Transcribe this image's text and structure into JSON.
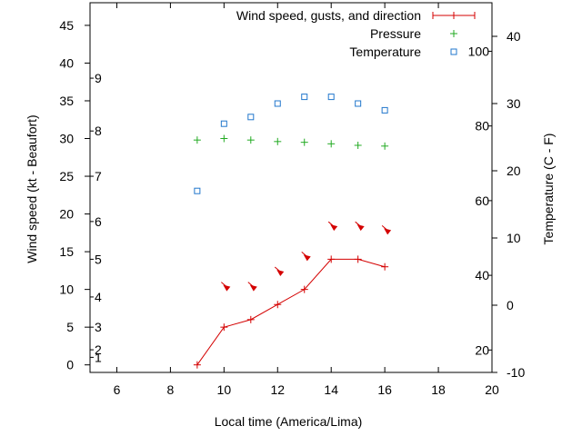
{
  "chart_data": {
    "type": "line",
    "xlabel": "Local time (America/Lima)",
    "ylabel": "Wind speed (kt - Beaufort)",
    "y2label": "Temperature (C - F)",
    "xlim": [
      5,
      20
    ],
    "ylim": [
      -1,
      48
    ],
    "y2lim": [
      -10,
      45
    ],
    "xticks": [
      "6",
      "8",
      "10",
      "12",
      "14",
      "16",
      "18",
      "20"
    ],
    "yticks": [
      "0",
      "5",
      "10",
      "15",
      "20",
      "25",
      "30",
      "35",
      "40",
      "45"
    ],
    "y2ticks": [
      "-10",
      "0",
      "10",
      "20",
      "30",
      "40"
    ],
    "beaufort_labels": [
      "1",
      "2",
      "3",
      "4",
      "5",
      "6",
      "7",
      "8",
      "9"
    ],
    "fahrenheit_labels": [
      "20",
      "40",
      "60",
      "80",
      "100"
    ],
    "colors": {
      "wind": "#d40000",
      "pressure": "#22aa22",
      "temperature": "#2277cc"
    },
    "legend_position": "top-right",
    "series": [
      {
        "name": "Wind speed, gusts, and direction",
        "style": "line-with-plus-markers",
        "x": [
          9,
          10,
          11,
          12,
          13,
          14,
          15,
          16
        ],
        "values": [
          0,
          5,
          6,
          8,
          10,
          14,
          14,
          13
        ]
      },
      {
        "name": "Pressure",
        "style": "plus-markers",
        "x": [
          9,
          10,
          11,
          12,
          13,
          14,
          15,
          16
        ],
        "values": [
          29.8,
          30.0,
          29.8,
          29.6,
          29.5,
          29.3,
          29.1,
          29.0
        ]
      },
      {
        "name": "Temperature",
        "style": "square-markers",
        "axis": "y2",
        "x": [
          9,
          10,
          11,
          12,
          13,
          14,
          15,
          16
        ],
        "values": [
          17,
          27,
          28,
          30,
          31,
          31,
          30,
          29
        ]
      }
    ],
    "wind_direction_arrows": {
      "x": [
        10,
        11,
        12,
        13,
        14,
        15,
        16
      ],
      "arrow_y": [
        10,
        10,
        12,
        14,
        18,
        18,
        17.5
      ]
    }
  }
}
